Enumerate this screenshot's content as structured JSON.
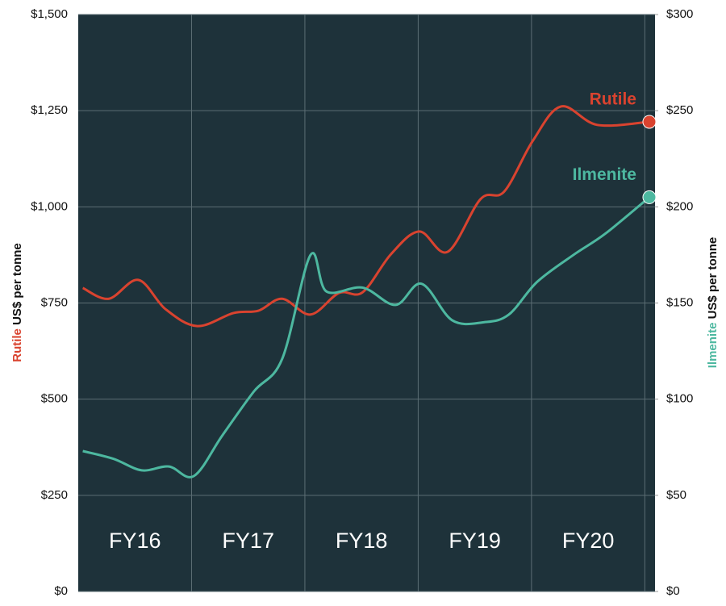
{
  "chart_data": {
    "type": "line",
    "categories": [
      "FY16",
      "FY17",
      "FY18",
      "FY19",
      "FY20"
    ],
    "ylabel": "US$ per tonne",
    "xlim": [
      0,
      5.09
    ],
    "ylim": [
      0,
      1500
    ],
    "yticks": [
      {
        "value": 0,
        "label": "$0"
      },
      {
        "value": 250,
        "label": "$250"
      },
      {
        "value": 500,
        "label": "$500"
      },
      {
        "value": 750,
        "label": "$750"
      },
      {
        "value": 1000,
        "label": "$1,000"
      },
      {
        "value": 1250,
        "label": "$1,250"
      },
      {
        "value": 1500,
        "label": "$1,500"
      }
    ],
    "y2lim": [
      0,
      300
    ],
    "y2ticks": [
      {
        "value": 0,
        "label": "$0"
      },
      {
        "value": 50,
        "label": "$50"
      },
      {
        "value": 100,
        "label": "$100"
      },
      {
        "value": 150,
        "label": "$150"
      },
      {
        "value": 200,
        "label": "$200"
      },
      {
        "value": 250,
        "label": "$250"
      },
      {
        "value": 300,
        "label": "$300"
      }
    ],
    "grid": true,
    "series": [
      {
        "name": "Rutile",
        "color": "#d9432f",
        "x": [
          0.04,
          0.27,
          0.53,
          0.77,
          1.05,
          1.37,
          1.59,
          1.8,
          2.05,
          2.3,
          2.51,
          2.76,
          3.01,
          3.26,
          3.55,
          3.76,
          4.01,
          4.26,
          4.58,
          5.04
        ],
        "values": [
          789,
          761,
          810,
          734,
          690,
          724,
          730,
          761,
          720,
          776,
          778,
          877,
          936,
          883,
          1020,
          1040,
          1171,
          1261,
          1213,
          1221
        ]
      },
      {
        "name": "Ilmenite",
        "color": "#4db8a0",
        "axis": "y2",
        "x": [
          0.04,
          0.31,
          0.56,
          0.8,
          1.02,
          1.27,
          1.55,
          1.8,
          2.05,
          2.19,
          2.51,
          2.8,
          3.03,
          3.3,
          3.58,
          3.8,
          4.05,
          4.37,
          4.65,
          5.04
        ],
        "values": [
          73,
          69,
          63,
          65,
          60,
          81,
          104,
          121,
          175,
          156,
          158,
          149,
          160,
          141,
          140,
          144,
          161,
          175,
          186,
          205
        ]
      }
    ]
  }
}
